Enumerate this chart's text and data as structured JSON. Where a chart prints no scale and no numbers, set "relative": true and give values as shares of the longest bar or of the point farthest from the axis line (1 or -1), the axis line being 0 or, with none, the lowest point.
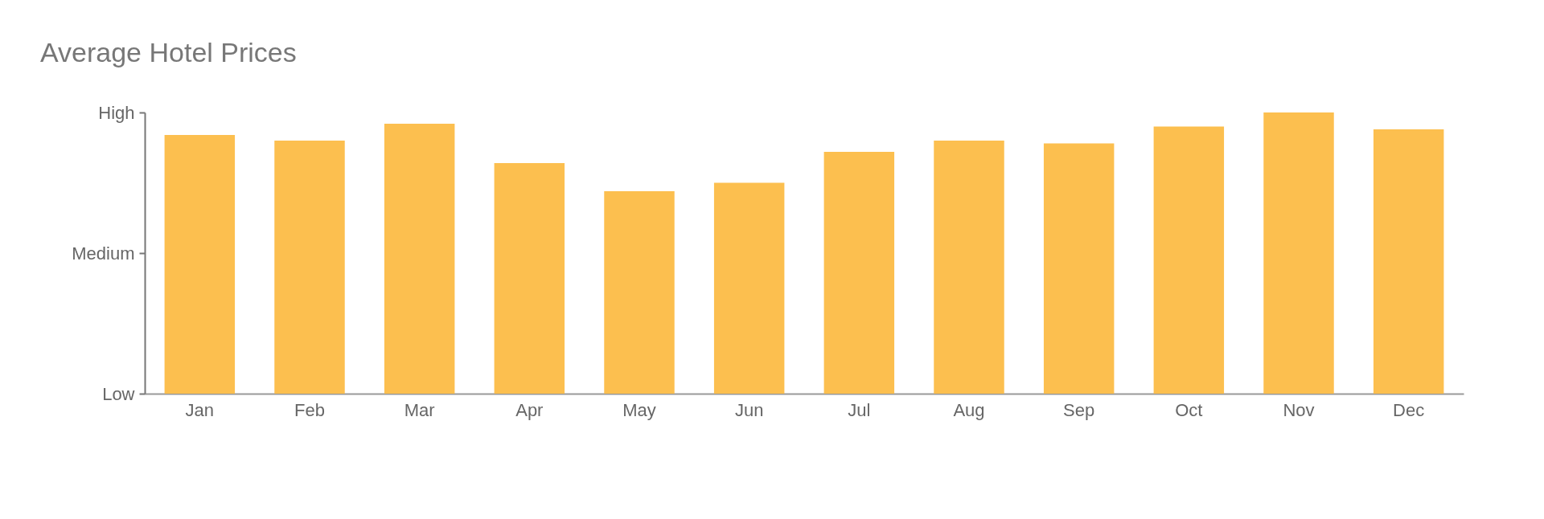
{
  "chart_data": {
    "type": "bar",
    "title": "Average Hotel Prices",
    "categories": [
      "Jan",
      "Feb",
      "Mar",
      "Apr",
      "May",
      "Jun",
      "Jul",
      "Aug",
      "Sep",
      "Oct",
      "Nov",
      "Dec"
    ],
    "values": [
      0.92,
      0.9,
      0.96,
      0.82,
      0.72,
      0.75,
      0.86,
      0.9,
      0.89,
      0.95,
      1.0,
      0.94
    ],
    "color": "#fcbf4f",
    "relative": true,
    "annotations": [
      "Low",
      "Medium",
      "High"
    ],
    "grid": false
  }
}
